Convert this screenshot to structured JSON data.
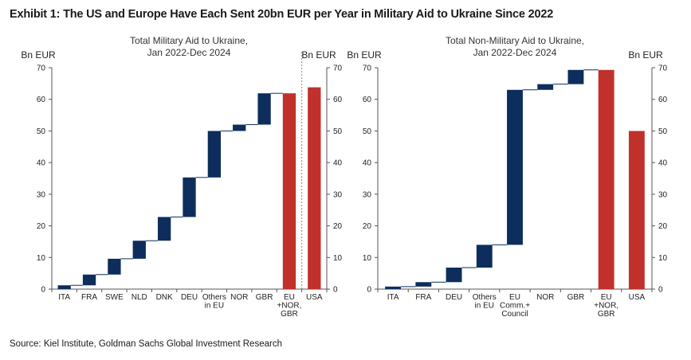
{
  "exhibit_title": "Exhibit 1: The US and Europe Have Each Sent 20bn EUR per Year in Military Aid to Ukraine Since 2022",
  "source": "Source: Kiel Institute, Goldman Sachs Global Investment Research",
  "colors": {
    "navy": "#0d2e5c",
    "red": "#c0312b",
    "axis": "#555555"
  },
  "chart_data": [
    {
      "type": "bar",
      "subtype": "waterfall",
      "title": [
        "Total Military Aid to Ukraine,",
        "Jan 2022-Dec 2024"
      ],
      "ylabel_left": "Bn EUR",
      "ylabel_right": "Bn EUR",
      "ylim": [
        0,
        70
      ],
      "yticks": [
        0,
        10,
        20,
        30,
        40,
        50,
        60,
        70
      ],
      "grid": false,
      "categories": [
        [
          "ITA"
        ],
        [
          "FRA"
        ],
        [
          "SWE"
        ],
        [
          "NLD"
        ],
        [
          "DNK"
        ],
        [
          "DEU"
        ],
        [
          "Others",
          "in EU"
        ],
        [
          "NOR"
        ],
        [
          "GBR"
        ],
        [
          "EU",
          "+NOR,",
          "GBR"
        ],
        [
          "USA"
        ]
      ],
      "bars": [
        {
          "base": 0,
          "top": 1.2,
          "kind": "step"
        },
        {
          "base": 1.2,
          "top": 4.6,
          "kind": "step"
        },
        {
          "base": 4.6,
          "top": 9.6,
          "kind": "step"
        },
        {
          "base": 9.6,
          "top": 15.3,
          "kind": "step"
        },
        {
          "base": 15.3,
          "top": 22.8,
          "kind": "step"
        },
        {
          "base": 22.8,
          "top": 35.3,
          "kind": "step"
        },
        {
          "base": 35.3,
          "top": 50.0,
          "kind": "step"
        },
        {
          "base": 50.0,
          "top": 52.0,
          "kind": "step"
        },
        {
          "base": 52.0,
          "top": 61.9,
          "kind": "step"
        },
        {
          "base": 0,
          "top": 61.9,
          "kind": "total"
        },
        {
          "base": 0,
          "top": 63.8,
          "kind": "total"
        }
      ],
      "separator_after_index": 9
    },
    {
      "type": "bar",
      "subtype": "waterfall",
      "title": [
        "Total Non-Military Aid to Ukraine,",
        "Jan 2022-Dec 2024"
      ],
      "ylabel_left": "Bn EUR",
      "ylabel_right": "Bn EUR",
      "ylim": [
        0,
        70
      ],
      "yticks": [
        0,
        10,
        20,
        30,
        40,
        50,
        60,
        70
      ],
      "grid": false,
      "categories": [
        [
          "ITA"
        ],
        [
          "FRA"
        ],
        [
          "DEU"
        ],
        [
          "Others",
          "in EU"
        ],
        [
          "EU",
          "Comm.+",
          "Council"
        ],
        [
          "NOR"
        ],
        [
          "GBR"
        ],
        [
          "EU",
          "+NOR,",
          "GBR"
        ],
        [
          "USA"
        ]
      ],
      "bars": [
        {
          "base": 0,
          "top": 0.8,
          "kind": "step"
        },
        {
          "base": 0.8,
          "top": 2.2,
          "kind": "step"
        },
        {
          "base": 2.2,
          "top": 6.8,
          "kind": "step"
        },
        {
          "base": 6.8,
          "top": 14.0,
          "kind": "step"
        },
        {
          "base": 14.0,
          "top": 63.0,
          "kind": "step"
        },
        {
          "base": 63.0,
          "top": 64.8,
          "kind": "step"
        },
        {
          "base": 64.8,
          "top": 69.3,
          "kind": "step"
        },
        {
          "base": 0,
          "top": 69.3,
          "kind": "total"
        },
        {
          "base": 0,
          "top": 50.0,
          "kind": "total"
        }
      ],
      "separator_after_index": null
    }
  ]
}
